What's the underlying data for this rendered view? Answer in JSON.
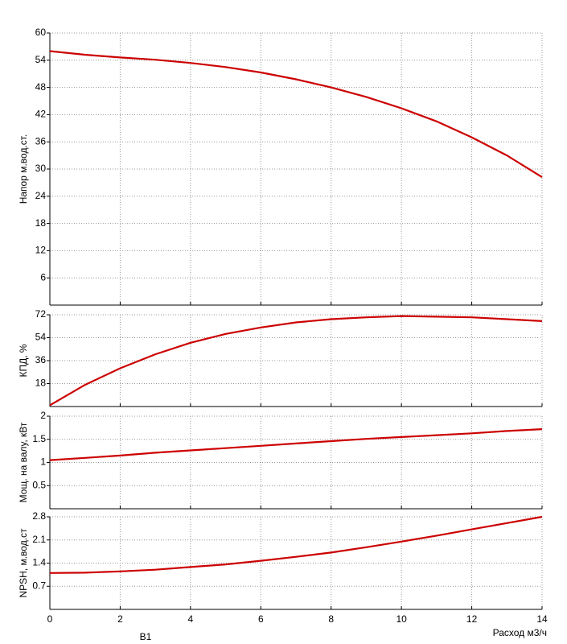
{
  "chart_data": [
    {
      "type": "line",
      "y_label": "Напор м.вод.ст.",
      "xlim": [
        0,
        14
      ],
      "xticks": [
        0,
        2,
        4,
        6,
        8,
        10,
        12,
        14
      ],
      "ylim": [
        0,
        60
      ],
      "yticks": [
        6,
        12,
        18,
        24,
        30,
        36,
        42,
        48,
        54,
        60
      ],
      "grid": true,
      "x": [
        0,
        1,
        2,
        3,
        4,
        5,
        6,
        7,
        8,
        9,
        10,
        11,
        12,
        13,
        14
      ],
      "series": [
        {
          "color": "#cc0000",
          "values": [
            56,
            55.2,
            54.6,
            54.1,
            53.4,
            52.5,
            51.3,
            49.8,
            48,
            45.9,
            43.4,
            40.5,
            37,
            33,
            28.2
          ]
        }
      ]
    },
    {
      "type": "line",
      "y_label": "КПД, %",
      "xlim": [
        0,
        14
      ],
      "xticks": [
        0,
        2,
        4,
        6,
        8,
        10,
        12,
        14
      ],
      "ylim": [
        0,
        72
      ],
      "yticks": [
        18,
        36,
        54,
        72
      ],
      "grid": true,
      "x": [
        0,
        1,
        2,
        3,
        4,
        5,
        6,
        7,
        8,
        9,
        10,
        11,
        12,
        13,
        14
      ],
      "series": [
        {
          "color": "#cc0000",
          "values": [
            1,
            17,
            30,
            41,
            50,
            57,
            62,
            66,
            68.5,
            70,
            71,
            70.5,
            70,
            68.5,
            67
          ]
        }
      ]
    },
    {
      "type": "line",
      "y_label": "Мощ. на валу, кВт",
      "xlim": [
        0,
        14
      ],
      "xticks": [
        0,
        2,
        4,
        6,
        8,
        10,
        12,
        14
      ],
      "ylim": [
        0,
        2
      ],
      "yticks": [
        0.5,
        1,
        1.5,
        2
      ],
      "grid": true,
      "x": [
        0,
        1,
        2,
        3,
        4,
        5,
        6,
        7,
        8,
        9,
        10,
        11,
        12,
        13,
        14
      ],
      "series": [
        {
          "color": "#cc0000",
          "values": [
            1.05,
            1.1,
            1.15,
            1.21,
            1.26,
            1.31,
            1.36,
            1.41,
            1.46,
            1.51,
            1.55,
            1.59,
            1.63,
            1.68,
            1.72
          ]
        }
      ]
    },
    {
      "type": "line",
      "y_label": "NPSH, м.вод.ст",
      "x_label": "Расход м3/ч",
      "legend_fragment": "B1",
      "xlim": [
        0,
        14
      ],
      "xticks": [
        0,
        2,
        4,
        6,
        8,
        10,
        12,
        14
      ],
      "ylim": [
        0,
        2.8
      ],
      "yticks": [
        0.7,
        1.4,
        2.1,
        2.8
      ],
      "grid": true,
      "x": [
        0,
        1,
        2,
        3,
        4,
        5,
        6,
        7,
        8,
        9,
        10,
        11,
        12,
        13,
        14
      ],
      "series": [
        {
          "color": "#cc0000",
          "values": [
            1.1,
            1.11,
            1.15,
            1.2,
            1.28,
            1.36,
            1.47,
            1.59,
            1.72,
            1.88,
            2.05,
            2.23,
            2.42,
            2.61,
            2.8
          ]
        }
      ]
    }
  ]
}
